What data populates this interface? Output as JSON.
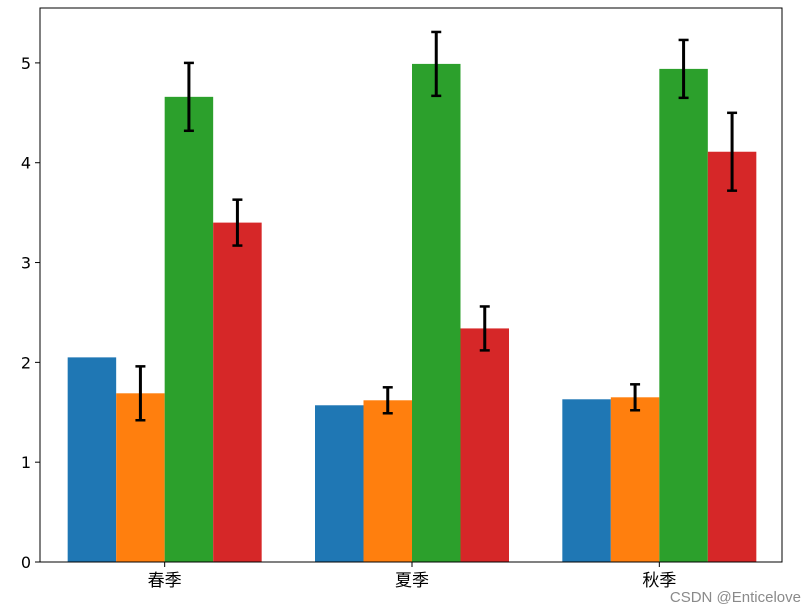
{
  "chart_data": {
    "type": "bar",
    "categories": [
      "春季",
      "夏季",
      "秋季"
    ],
    "series": [
      {
        "values": [
          2.05,
          1.57,
          1.63
        ],
        "errors": [
          0,
          0,
          0
        ],
        "color": "#1f77b4"
      },
      {
        "values": [
          1.69,
          1.62,
          1.65
        ],
        "errors": [
          0.27,
          0.13,
          0.13
        ],
        "color": "#ff7f0e"
      },
      {
        "values": [
          4.66,
          4.99,
          4.94
        ],
        "errors": [
          0.34,
          0.32,
          0.29
        ],
        "color": "#2ca02c"
      },
      {
        "values": [
          3.4,
          2.34,
          4.11
        ],
        "errors": [
          0.23,
          0.22,
          0.39
        ],
        "color": "#d62728"
      }
    ],
    "ylim": [
      0,
      5.55
    ],
    "yticks": [
      0,
      1,
      2,
      3,
      4,
      5
    ],
    "error_bar_color": "#000000",
    "grid": false,
    "title": "",
    "xlabel": "",
    "ylabel": ""
  },
  "watermark": "CSDN @Enticelove"
}
